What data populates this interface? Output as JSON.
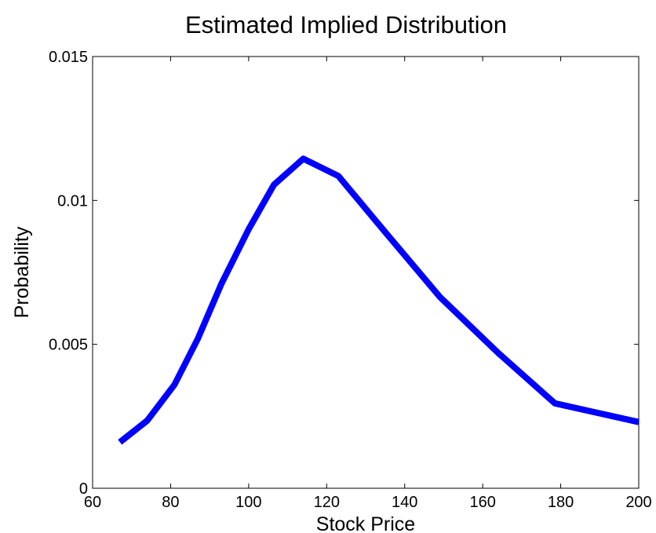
{
  "chart_data": {
    "type": "line",
    "title": "Estimated Implied Distribution",
    "xlabel": "Stock Price",
    "ylabel": "Probability",
    "xlim": [
      60,
      200
    ],
    "ylim": [
      0,
      0.015
    ],
    "xticks": [
      60,
      80,
      100,
      120,
      140,
      160,
      180,
      200
    ],
    "xtick_labels": [
      "60",
      "80",
      "100",
      "120",
      "140",
      "160",
      "180",
      "200"
    ],
    "yticks": [
      0,
      0.005,
      0.01,
      0.015
    ],
    "ytick_labels": [
      "0",
      "0.005",
      "0.01",
      "0.015"
    ],
    "grid": false,
    "legend": "none",
    "series": [
      {
        "color": "#0000ff",
        "x": [
          67,
          74,
          81,
          87,
          93,
          100,
          106.5,
          114,
          123,
          135,
          149,
          164,
          178.5,
          200
        ],
        "y": [
          0.0016,
          0.00235,
          0.0036,
          0.0052,
          0.0071,
          0.009,
          0.01055,
          0.01145,
          0.01085,
          0.0089,
          0.00665,
          0.0047,
          0.00295,
          0.0023
        ]
      }
    ]
  }
}
